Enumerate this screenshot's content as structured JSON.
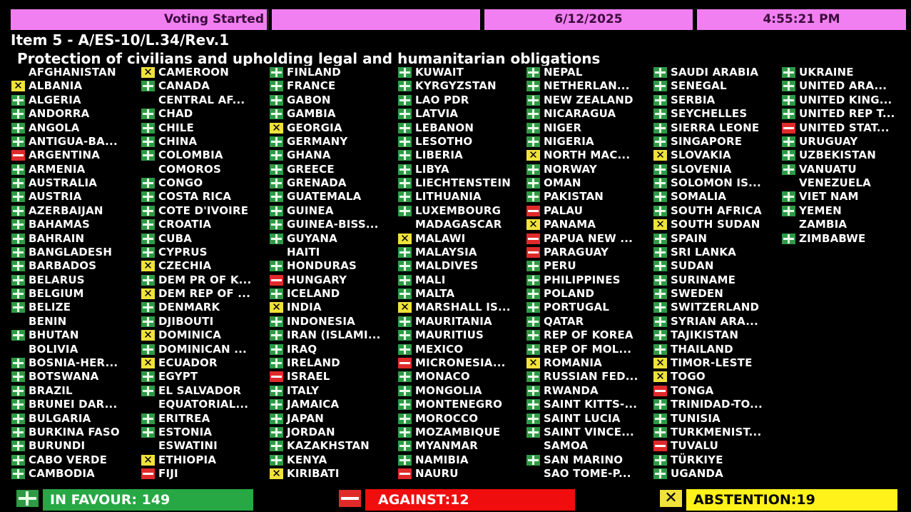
{
  "header": {
    "status": "Voting Started",
    "date": "6/12/2025",
    "time": "4:55:21 PM"
  },
  "item": "Item 5 - A/ES-10/L.34/Rev.1",
  "title": "Protection of civilians and upholding legal and humanitarian obligations",
  "colors": {
    "yes": "#2f9a45",
    "no": "#e02a2a",
    "abstain": "#f0e23a",
    "header": "#f27ff2"
  },
  "vote_legend": {
    "Y": "in favour (plus icon)",
    "N": "against (minus icon)",
    "A": "abstention (x icon)",
    "": "no vote"
  },
  "columns": [
    [
      [
        "AFGHANISTAN",
        ""
      ],
      [
        "ALBANIA",
        "A"
      ],
      [
        "ALGERIA",
        "Y"
      ],
      [
        "ANDORRA",
        "Y"
      ],
      [
        "ANGOLA",
        "Y"
      ],
      [
        "ANTIGUA-BA...",
        "Y"
      ],
      [
        "ARGENTINA",
        "N"
      ],
      [
        "ARMENIA",
        "Y"
      ],
      [
        "AUSTRALIA",
        "Y"
      ],
      [
        "AUSTRIA",
        "Y"
      ],
      [
        "AZERBAIJAN",
        "Y"
      ],
      [
        "BAHAMAS",
        "Y"
      ],
      [
        "BAHRAIN",
        "Y"
      ],
      [
        "BANGLADESH",
        "Y"
      ],
      [
        "BARBADOS",
        "Y"
      ],
      [
        "BELARUS",
        "Y"
      ],
      [
        "BELGIUM",
        "Y"
      ],
      [
        "BELIZE",
        "Y"
      ],
      [
        "BENIN",
        ""
      ],
      [
        "BHUTAN",
        "Y"
      ],
      [
        "BOLIVIA",
        ""
      ],
      [
        "BOSNIA-HER...",
        "Y"
      ],
      [
        "BOTSWANA",
        "Y"
      ],
      [
        "BRAZIL",
        "Y"
      ],
      [
        "BRUNEI DAR...",
        "Y"
      ],
      [
        "BULGARIA",
        "Y"
      ],
      [
        "BURKINA FASO",
        "Y"
      ],
      [
        "BURUNDI",
        "Y"
      ],
      [
        "CABO VERDE",
        "Y"
      ],
      [
        "CAMBODIA",
        "Y"
      ]
    ],
    [
      [
        "CAMEROON",
        "A"
      ],
      [
        "CANADA",
        "Y"
      ],
      [
        "CENTRAL AF...",
        ""
      ],
      [
        "CHAD",
        "Y"
      ],
      [
        "CHILE",
        "Y"
      ],
      [
        "CHINA",
        "Y"
      ],
      [
        "COLOMBIA",
        "Y"
      ],
      [
        "COMOROS",
        ""
      ],
      [
        "CONGO",
        "Y"
      ],
      [
        "COSTA RICA",
        "Y"
      ],
      [
        "COTE D'IVOIRE",
        "Y"
      ],
      [
        "CROATIA",
        "Y"
      ],
      [
        "CUBA",
        "Y"
      ],
      [
        "CYPRUS",
        "Y"
      ],
      [
        "CZECHIA",
        "A"
      ],
      [
        "DEM PR OF K...",
        "Y"
      ],
      [
        "DEM REP OF ...",
        "A"
      ],
      [
        "DENMARK",
        "Y"
      ],
      [
        "DJIBOUTI",
        "Y"
      ],
      [
        "DOMINICA",
        "A"
      ],
      [
        "DOMINICAN ...",
        "Y"
      ],
      [
        "ECUADOR",
        "A"
      ],
      [
        "EGYPT",
        "Y"
      ],
      [
        "EL SALVADOR",
        "Y"
      ],
      [
        "EQUATORIAL...",
        ""
      ],
      [
        "ERITREA",
        "Y"
      ],
      [
        "ESTONIA",
        "Y"
      ],
      [
        "ESWATINI",
        ""
      ],
      [
        "ETHIOPIA",
        "A"
      ],
      [
        "FIJI",
        "N"
      ]
    ],
    [
      [
        "FINLAND",
        "Y"
      ],
      [
        "FRANCE",
        "Y"
      ],
      [
        "GABON",
        "Y"
      ],
      [
        "GAMBIA",
        "Y"
      ],
      [
        "GEORGIA",
        "A"
      ],
      [
        "GERMANY",
        "Y"
      ],
      [
        "GHANA",
        "Y"
      ],
      [
        "GREECE",
        "Y"
      ],
      [
        "GRENADA",
        "Y"
      ],
      [
        "GUATEMALA",
        "Y"
      ],
      [
        "GUINEA",
        "Y"
      ],
      [
        "GUINEA-BISS...",
        "Y"
      ],
      [
        "GUYANA",
        "Y"
      ],
      [
        "HAITI",
        ""
      ],
      [
        "HONDURAS",
        "Y"
      ],
      [
        "HUNGARY",
        "N"
      ],
      [
        "ICELAND",
        "Y"
      ],
      [
        "INDIA",
        "A"
      ],
      [
        "INDONESIA",
        "Y"
      ],
      [
        "IRAN (ISLAMI...",
        "Y"
      ],
      [
        "IRAQ",
        "Y"
      ],
      [
        "IRELAND",
        "Y"
      ],
      [
        "ISRAEL",
        "N"
      ],
      [
        "ITALY",
        "Y"
      ],
      [
        "JAMAICA",
        "Y"
      ],
      [
        "JAPAN",
        "Y"
      ],
      [
        "JORDAN",
        "Y"
      ],
      [
        "KAZAKHSTAN",
        "Y"
      ],
      [
        "KENYA",
        "Y"
      ],
      [
        "KIRIBATI",
        "A"
      ]
    ],
    [
      [
        "KUWAIT",
        "Y"
      ],
      [
        "KYRGYZSTAN",
        "Y"
      ],
      [
        "LAO PDR",
        "Y"
      ],
      [
        "LATVIA",
        "Y"
      ],
      [
        "LEBANON",
        "Y"
      ],
      [
        "LESOTHO",
        "Y"
      ],
      [
        "LIBERIA",
        "Y"
      ],
      [
        "LIBYA",
        "Y"
      ],
      [
        "LIECHTENSTEIN",
        "Y"
      ],
      [
        "LITHUANIA",
        "Y"
      ],
      [
        "LUXEMBOURG",
        "Y"
      ],
      [
        "MADAGASCAR",
        ""
      ],
      [
        "MALAWI",
        "A"
      ],
      [
        "MALAYSIA",
        "Y"
      ],
      [
        "MALDIVES",
        "Y"
      ],
      [
        "MALI",
        "Y"
      ],
      [
        "MALTA",
        "Y"
      ],
      [
        "MARSHALL IS...",
        "A"
      ],
      [
        "MAURITANIA",
        "Y"
      ],
      [
        "MAURITIUS",
        "Y"
      ],
      [
        "MEXICO",
        "Y"
      ],
      [
        "MICRONESIA...",
        "N"
      ],
      [
        "MONACO",
        "Y"
      ],
      [
        "MONGOLIA",
        "Y"
      ],
      [
        "MONTENEGRO",
        "Y"
      ],
      [
        "MOROCCO",
        "Y"
      ],
      [
        "MOZAMBIQUE",
        "Y"
      ],
      [
        "MYANMAR",
        "Y"
      ],
      [
        "NAMIBIA",
        "Y"
      ],
      [
        "NAURU",
        "N"
      ]
    ],
    [
      [
        "NEPAL",
        "Y"
      ],
      [
        "NETHERLAN...",
        "Y"
      ],
      [
        "NEW ZEALAND",
        "Y"
      ],
      [
        "NICARAGUA",
        "Y"
      ],
      [
        "NIGER",
        "Y"
      ],
      [
        "NIGERIA",
        "Y"
      ],
      [
        "NORTH MAC...",
        "A"
      ],
      [
        "NORWAY",
        "Y"
      ],
      [
        "OMAN",
        "Y"
      ],
      [
        "PAKISTAN",
        "Y"
      ],
      [
        "PALAU",
        "N"
      ],
      [
        "PANAMA",
        "A"
      ],
      [
        "PAPUA NEW ...",
        "N"
      ],
      [
        "PARAGUAY",
        "N"
      ],
      [
        "PERU",
        "Y"
      ],
      [
        "PHILIPPINES",
        "Y"
      ],
      [
        "POLAND",
        "Y"
      ],
      [
        "PORTUGAL",
        "Y"
      ],
      [
        "QATAR",
        "Y"
      ],
      [
        "REP OF KOREA",
        "Y"
      ],
      [
        "REP OF MOL...",
        "Y"
      ],
      [
        "ROMANIA",
        "A"
      ],
      [
        "RUSSIAN FED...",
        "Y"
      ],
      [
        "RWANDA",
        "Y"
      ],
      [
        "SAINT KITTS-...",
        "Y"
      ],
      [
        "SAINT LUCIA",
        "Y"
      ],
      [
        "SAINT VINCE...",
        "Y"
      ],
      [
        "SAMOA",
        ""
      ],
      [
        "SAN MARINO",
        "Y"
      ],
      [
        "SAO TOME-P...",
        ""
      ]
    ],
    [
      [
        "SAUDI ARABIA",
        "Y"
      ],
      [
        "SENEGAL",
        "Y"
      ],
      [
        "SERBIA",
        "Y"
      ],
      [
        "SEYCHELLES",
        "Y"
      ],
      [
        "SIERRA LEONE",
        "Y"
      ],
      [
        "SINGAPORE",
        "Y"
      ],
      [
        "SLOVAKIA",
        "A"
      ],
      [
        "SLOVENIA",
        "Y"
      ],
      [
        "SOLOMON IS...",
        "Y"
      ],
      [
        "SOMALIA",
        "Y"
      ],
      [
        "SOUTH AFRICA",
        "Y"
      ],
      [
        "SOUTH SUDAN",
        "A"
      ],
      [
        "SPAIN",
        "Y"
      ],
      [
        "SRI LANKA",
        "Y"
      ],
      [
        "SUDAN",
        "Y"
      ],
      [
        "SURINAME",
        "Y"
      ],
      [
        "SWEDEN",
        "Y"
      ],
      [
        "SWITZERLAND",
        "Y"
      ],
      [
        "SYRIAN ARA...",
        "Y"
      ],
      [
        "TAJIKISTAN",
        "Y"
      ],
      [
        "THAILAND",
        "Y"
      ],
      [
        "TIMOR-LESTE",
        "A"
      ],
      [
        "TOGO",
        "A"
      ],
      [
        "TONGA",
        "N"
      ],
      [
        "TRINIDAD-TO...",
        "Y"
      ],
      [
        "TUNISIA",
        "Y"
      ],
      [
        "TURKMENIST...",
        "Y"
      ],
      [
        "TUVALU",
        "N"
      ],
      [
        "TÜRKIYE",
        "Y"
      ],
      [
        "UGANDA",
        "Y"
      ]
    ],
    [
      [
        "UKRAINE",
        "Y"
      ],
      [
        "UNITED ARA...",
        "Y"
      ],
      [
        "UNITED KING...",
        "Y"
      ],
      [
        "UNITED REP T...",
        "Y"
      ],
      [
        "UNITED STAT...",
        "N"
      ],
      [
        "URUGUAY",
        "Y"
      ],
      [
        "UZBEKISTAN",
        "Y"
      ],
      [
        "VANUATU",
        "Y"
      ],
      [
        "VENEZUELA",
        ""
      ],
      [
        "VIET NAM",
        "Y"
      ],
      [
        "YEMEN",
        "Y"
      ],
      [
        "ZAMBIA",
        ""
      ],
      [
        "ZIMBABWE",
        "Y"
      ]
    ]
  ],
  "totals": {
    "in_favour": "IN FAVOUR: 149",
    "against": "AGAINST:12",
    "abstention": "ABSTENTION:19"
  }
}
